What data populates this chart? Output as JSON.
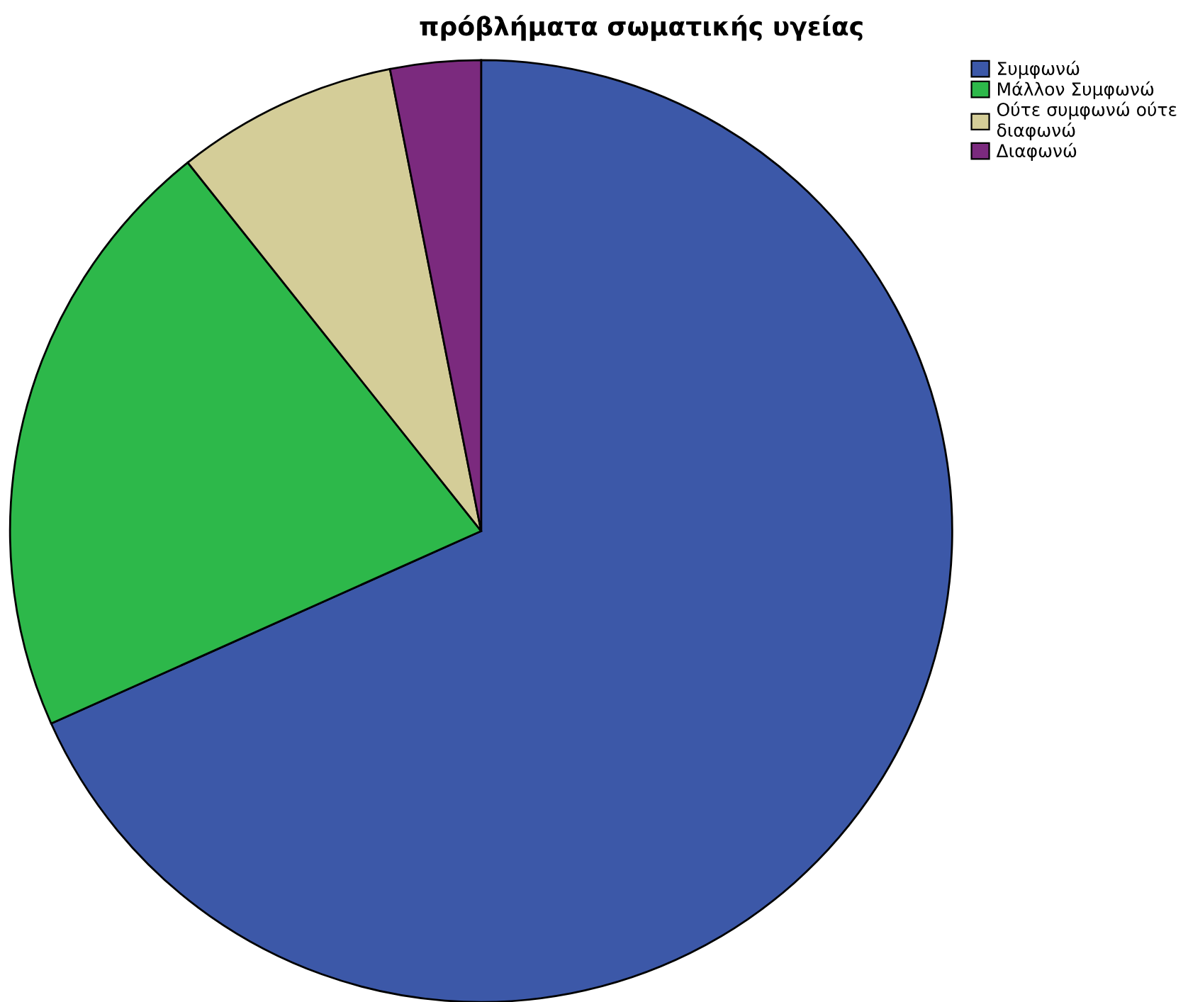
{
  "chart_data": {
    "type": "pie",
    "title": "πρόβλήματα σωματικής υγείας",
    "categories": [
      "Συμφωνώ",
      "Μάλλον Συμφωνώ",
      "Ούτε συμφωνώ ούτε\nδιαφωνώ",
      "Διαφωνώ"
    ],
    "values": [
      68.3,
      21.0,
      7.6,
      3.1
    ],
    "colors": [
      "#3c58a8",
      "#2db84a",
      "#d4cd98",
      "#7b2a7e"
    ],
    "legend": "top right"
  }
}
